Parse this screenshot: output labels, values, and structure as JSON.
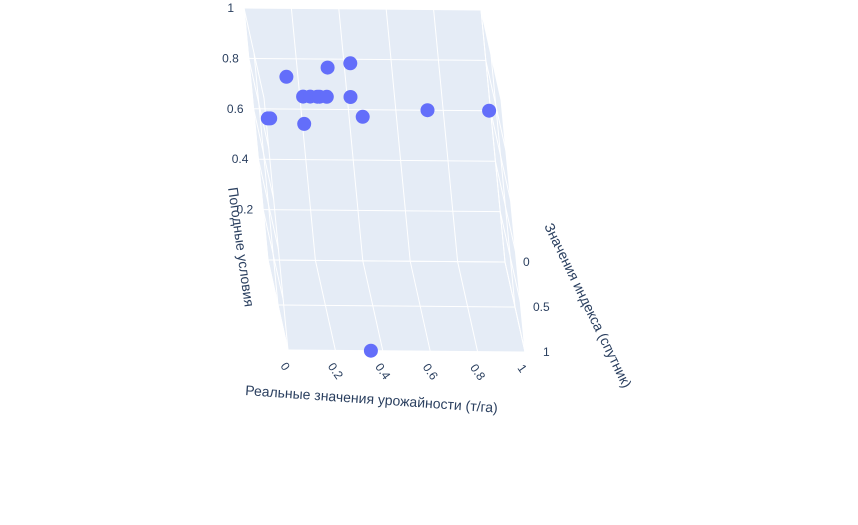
{
  "chart_data": {
    "type": "scatter3d",
    "x_axis": {
      "label": "Реальные значения урожайности (т/га)",
      "ticks": [
        "0",
        "0.2",
        "0.4",
        "0.6",
        "0.8",
        "1"
      ]
    },
    "y_axis": {
      "label": "Значения индекса (спутник)",
      "ticks": [
        "0",
        "0.5",
        "1"
      ]
    },
    "z_axis": {
      "label": "Погодные условия",
      "ticks": [
        "0.2",
        "0.4",
        "0.6",
        "0.8",
        "1"
      ]
    },
    "points": [
      {
        "x": 0.02,
        "y": 0.25,
        "z": 0.83
      },
      {
        "x": 0.03,
        "y": 0.25,
        "z": 0.83
      },
      {
        "x": 0.12,
        "y": 0.35,
        "z": 0.96
      },
      {
        "x": 0.17,
        "y": 0.22,
        "z": 0.82
      },
      {
        "x": 0.18,
        "y": 0.3,
        "z": 0.9
      },
      {
        "x": 0.21,
        "y": 0.3,
        "z": 0.9
      },
      {
        "x": 0.24,
        "y": 0.3,
        "z": 0.9
      },
      {
        "x": 0.25,
        "y": 0.3,
        "z": 0.9
      },
      {
        "x": 0.28,
        "y": 0.3,
        "z": 0.9
      },
      {
        "x": 0.3,
        "y": 0.4,
        "z": 0.98
      },
      {
        "x": 0.38,
        "y": 0.3,
        "z": 0.9
      },
      {
        "x": 0.42,
        "y": 0.22,
        "z": 0.85
      },
      {
        "x": 0.4,
        "y": 0.45,
        "z": 0.98
      },
      {
        "x": 0.7,
        "y": 0.3,
        "z": 0.85
      },
      {
        "x": 0.96,
        "y": 0.3,
        "z": 0.85
      },
      {
        "x": 0.35,
        "y": 0.0,
        "z": 0.0
      }
    ],
    "marker_color": "#636efa",
    "background_color": "#e5ecf6",
    "grid_color": "#ffffff"
  }
}
